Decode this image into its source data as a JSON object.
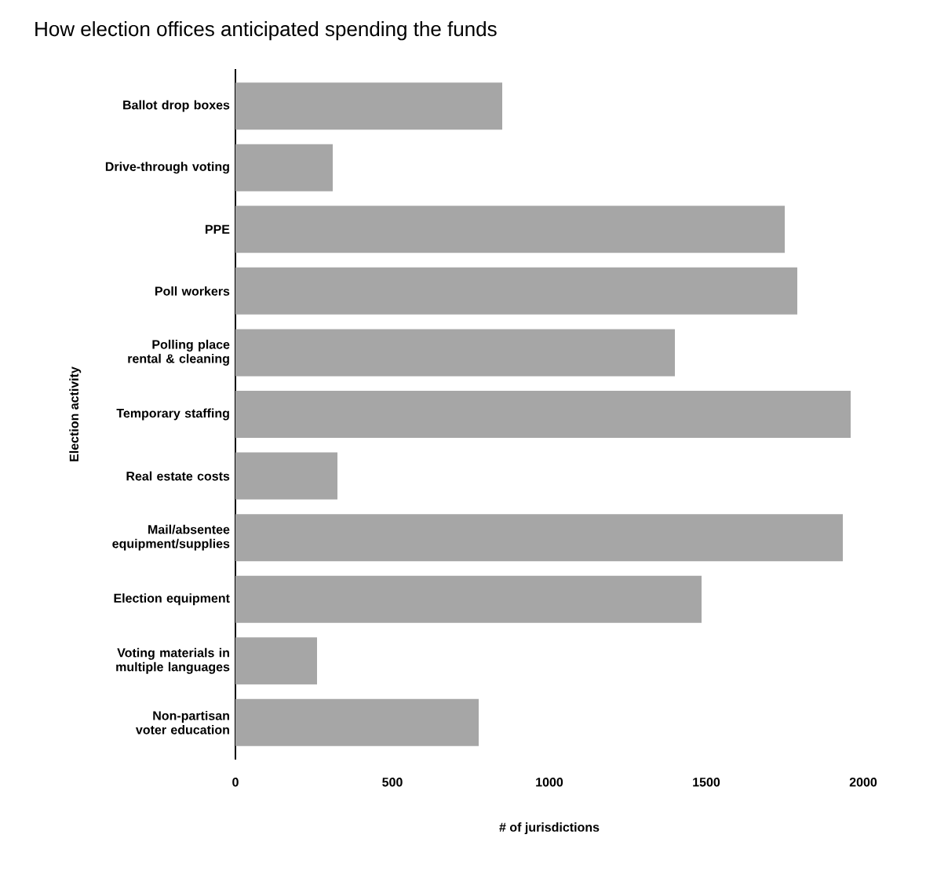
{
  "chart_data": {
    "type": "bar",
    "orientation": "horizontal",
    "title": "How election offices anticipated spending the funds",
    "xlabel": "# of jurisdictions",
    "ylabel": "Election activity",
    "categories": [
      "Ballot drop boxes",
      "Drive-through voting",
      "PPE",
      "Poll workers",
      "Polling place rental & cleaning",
      "Temporary staffing",
      "Real estate costs",
      "Mail/absentee equipment/supplies",
      "Election equipment",
      "Voting materials in multiple languages",
      "Non-partisan voter education"
    ],
    "values": [
      850,
      310,
      1750,
      1790,
      1400,
      1960,
      325,
      1935,
      1485,
      260,
      775
    ],
    "color": "#a6a6a6",
    "xlim": [
      0,
      2000
    ],
    "xticks": [
      0,
      500,
      1000,
      1500,
      2000
    ],
    "grid": false
  }
}
